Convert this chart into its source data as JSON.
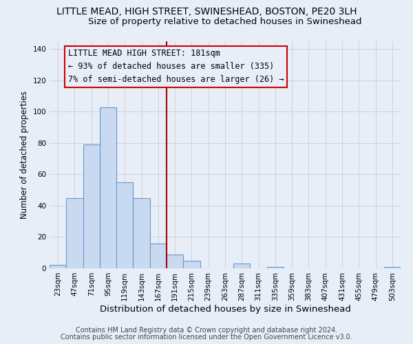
{
  "title": "LITTLE MEAD, HIGH STREET, SWINESHEAD, BOSTON, PE20 3LH",
  "subtitle": "Size of property relative to detached houses in Swineshead",
  "xlabel": "Distribution of detached houses by size in Swineshead",
  "ylabel": "Number of detached properties",
  "bin_labels": [
    "23sqm",
    "47sqm",
    "71sqm",
    "95sqm",
    "119sqm",
    "143sqm",
    "167sqm",
    "191sqm",
    "215sqm",
    "239sqm",
    "263sqm",
    "287sqm",
    "311sqm",
    "335sqm",
    "359sqm",
    "383sqm",
    "407sqm",
    "431sqm",
    "455sqm",
    "479sqm",
    "503sqm"
  ],
  "bar_values": [
    2,
    45,
    79,
    103,
    55,
    45,
    16,
    9,
    5,
    0,
    0,
    3,
    0,
    1,
    0,
    0,
    0,
    0,
    0,
    0,
    1
  ],
  "bar_color": "#c9d9f0",
  "bar_edgecolor": "#6699cc",
  "ylim": [
    0,
    145
  ],
  "yticks": [
    0,
    20,
    40,
    60,
    80,
    100,
    120,
    140
  ],
  "grid_color": "#cccccc",
  "background_color": "#e8eef8",
  "annotation_title": "LITTLE MEAD HIGH STREET: 181sqm",
  "annotation_line1": "← 93% of detached houses are smaller (335)",
  "annotation_line2": "7% of semi-detached houses are larger (26) →",
  "annotation_box_facecolor": "#e8eef8",
  "annotation_box_edgecolor": "#cc0000",
  "vline_color": "#aa0000",
  "footer1": "Contains HM Land Registry data © Crown copyright and database right 2024.",
  "footer2": "Contains public sector information licensed under the Open Government Licence v3.0.",
  "title_fontsize": 10,
  "subtitle_fontsize": 9.5,
  "xlabel_fontsize": 9.5,
  "ylabel_fontsize": 8.5,
  "tick_fontsize": 7.5,
  "annotation_fontsize": 8.5,
  "footer_fontsize": 7
}
